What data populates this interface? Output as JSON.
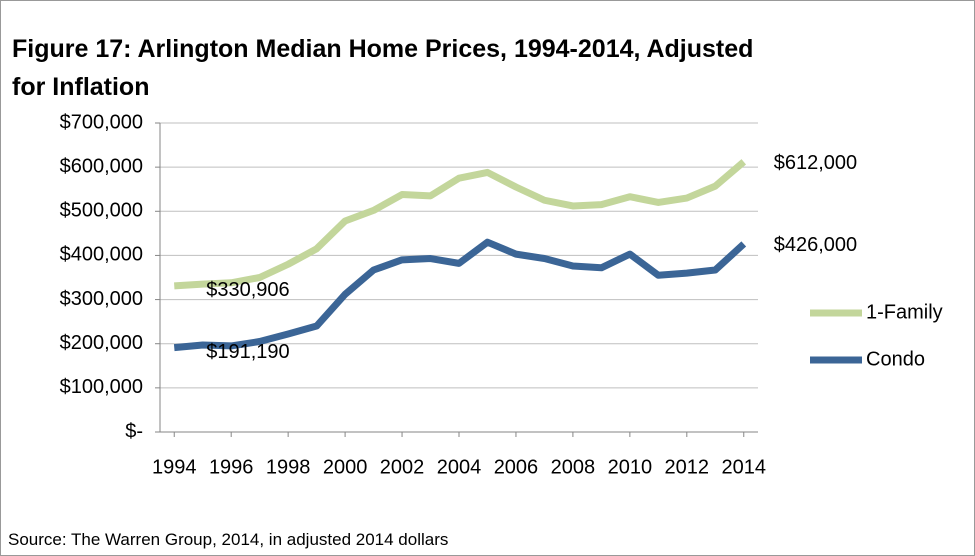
{
  "chart_data": {
    "type": "line",
    "title": "Figure 17: Arlington Median Home Prices, 1994-2014, Adjusted for Inflation",
    "source": "Source: The Warren Group, 2014, in adjusted 2014 dollars",
    "x": [
      1994,
      1995,
      1996,
      1997,
      1998,
      1999,
      2000,
      2001,
      2002,
      2003,
      2004,
      2005,
      2006,
      2007,
      2008,
      2009,
      2010,
      2011,
      2012,
      2013,
      2014
    ],
    "xlim": [
      1993.5,
      2014.5
    ],
    "xticks": [
      1994,
      1996,
      1998,
      2000,
      2002,
      2004,
      2006,
      2008,
      2010,
      2012,
      2014
    ],
    "ylim": [
      0,
      700000
    ],
    "yticks": [
      {
        "value": 0,
        "label": "$-"
      },
      {
        "value": 100000,
        "label": "$100,000"
      },
      {
        "value": 200000,
        "label": "$200,000"
      },
      {
        "value": 300000,
        "label": "$300,000"
      },
      {
        "value": 400000,
        "label": "$400,000"
      },
      {
        "value": 500000,
        "label": "$500,000"
      },
      {
        "value": 600000,
        "label": "$600,000"
      },
      {
        "value": 700000,
        "label": "$700,000"
      }
    ],
    "grid": true,
    "legend": "right",
    "series": [
      {
        "name": "1-Family",
        "color": "#c3d69b",
        "values": [
          330906,
          335000,
          338000,
          350000,
          380000,
          415000,
          478000,
          502000,
          538000,
          535000,
          575000,
          588000,
          555000,
          525000,
          512000,
          515000,
          533000,
          520000,
          530000,
          557000,
          612000
        ],
        "value_labels": [
          "$330,906",
          null,
          null,
          null,
          null,
          null,
          null,
          null,
          null,
          null,
          null,
          null,
          null,
          null,
          null,
          null,
          null,
          null,
          null,
          null,
          "$612,000"
        ]
      },
      {
        "name": "Condo",
        "color": "#3b6596",
        "values": [
          191190,
          197000,
          195000,
          205000,
          222000,
          240000,
          312000,
          367000,
          390000,
          393000,
          382000,
          430000,
          403000,
          393000,
          376000,
          372000,
          403000,
          355000,
          360000,
          367000,
          426000
        ],
        "value_labels": [
          "$191,190",
          null,
          null,
          null,
          null,
          null,
          null,
          null,
          null,
          null,
          null,
          null,
          null,
          null,
          null,
          null,
          null,
          null,
          null,
          null,
          "$426,000"
        ]
      }
    ]
  }
}
